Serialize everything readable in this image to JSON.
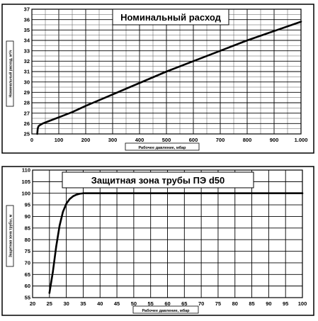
{
  "chart_data": [
    {
      "type": "line",
      "title": "Номинальный расход",
      "xlabel": "Рабочее давление, мбар",
      "ylabel": "Номинальный расход, м³/ч",
      "xlim": [
        0,
        1000
      ],
      "ylim": [
        25,
        37
      ],
      "xticks": [
        {
          "v": 0,
          "label": "0"
        },
        {
          "v": 100,
          "label": "100"
        },
        {
          "v": 200,
          "label": "200"
        },
        {
          "v": 300,
          "label": "300"
        },
        {
          "v": 400,
          "label": "400"
        },
        {
          "v": 500,
          "label": "500"
        },
        {
          "v": 600,
          "label": "600"
        },
        {
          "v": 700,
          "label": "700"
        },
        {
          "v": 800,
          "label": "800"
        },
        {
          "v": 900,
          "label": "900"
        },
        {
          "v": 1000,
          "label": "1.000"
        }
      ],
      "yticks": [
        {
          "v": 25,
          "label": "25"
        },
        {
          "v": 26,
          "label": "26"
        },
        {
          "v": 27,
          "label": "27"
        },
        {
          "v": 28,
          "label": "28"
        },
        {
          "v": 29,
          "label": "29"
        },
        {
          "v": 30,
          "label": "30"
        },
        {
          "v": 31,
          "label": "31"
        },
        {
          "v": 32,
          "label": "32"
        },
        {
          "v": 33,
          "label": "33"
        },
        {
          "v": 34,
          "label": "34"
        },
        {
          "v": 35,
          "label": "35"
        },
        {
          "v": 36,
          "label": "36"
        },
        {
          "v": 37,
          "label": "37"
        }
      ],
      "xgrid_step": 50,
      "ygrid_step": 0.5,
      "grid": true,
      "title_position": "top-center",
      "series": [
        {
          "x": [
            20,
            21,
            22,
            25,
            30,
            40,
            60,
            100,
            150,
            200,
            300,
            400,
            500,
            600,
            700,
            800,
            900,
            1000
          ],
          "y": [
            25,
            25.3,
            25.55,
            25.75,
            25.85,
            26.0,
            26.2,
            26.6,
            27.1,
            27.7,
            28.8,
            29.9,
            31.0,
            32.0,
            33.0,
            34.0,
            34.9,
            35.8
          ]
        }
      ]
    },
    {
      "type": "line",
      "title": "Защитная зона трубы ПЭ d50",
      "xlabel": "Рабочее давление, мбар",
      "ylabel": "Защитная зона трубы, м",
      "xlim": [
        20,
        100
      ],
      "ylim": [
        55,
        110
      ],
      "xticks": [
        {
          "v": 20,
          "label": "20"
        },
        {
          "v": 25,
          "label": "25"
        },
        {
          "v": 30,
          "label": "30"
        },
        {
          "v": 35,
          "label": "35"
        },
        {
          "v": 40,
          "label": "40"
        },
        {
          "v": 45,
          "label": "45"
        },
        {
          "v": 50,
          "label": "50"
        },
        {
          "v": 55,
          "label": "55"
        },
        {
          "v": 60,
          "label": "60"
        },
        {
          "v": 65,
          "label": "65"
        },
        {
          "v": 70,
          "label": "70"
        },
        {
          "v": 75,
          "label": "75"
        },
        {
          "v": 80,
          "label": "80"
        },
        {
          "v": 85,
          "label": "85"
        },
        {
          "v": 90,
          "label": "90"
        },
        {
          "v": 95,
          "label": "95"
        },
        {
          "v": 100,
          "label": "100"
        }
      ],
      "yticks": [
        {
          "v": 55,
          "label": "55"
        },
        {
          "v": 60,
          "label": "60"
        },
        {
          "v": 65,
          "label": "65"
        },
        {
          "v": 70,
          "label": "70"
        },
        {
          "v": 75,
          "label": "75"
        },
        {
          "v": 80,
          "label": "80"
        },
        {
          "v": 85,
          "label": "85"
        },
        {
          "v": 90,
          "label": "90"
        },
        {
          "v": 95,
          "label": "95"
        },
        {
          "v": 100,
          "label": "100"
        },
        {
          "v": 105,
          "label": "105"
        },
        {
          "v": 110,
          "label": "110"
        }
      ],
      "xgrid_step": 5,
      "ygrid_step": 5,
      "grid": true,
      "title_position": "top-left",
      "series": [
        {
          "x": [
            25,
            26,
            27,
            28,
            29,
            30,
            31,
            32,
            33,
            34,
            35,
            36,
            40,
            50,
            60,
            70,
            80,
            90,
            100
          ],
          "y": [
            57,
            66,
            77,
            86,
            92,
            95.5,
            97.5,
            98.7,
            99.4,
            99.8,
            100,
            100,
            100,
            100,
            100,
            100,
            100,
            100,
            100
          ]
        }
      ]
    }
  ]
}
